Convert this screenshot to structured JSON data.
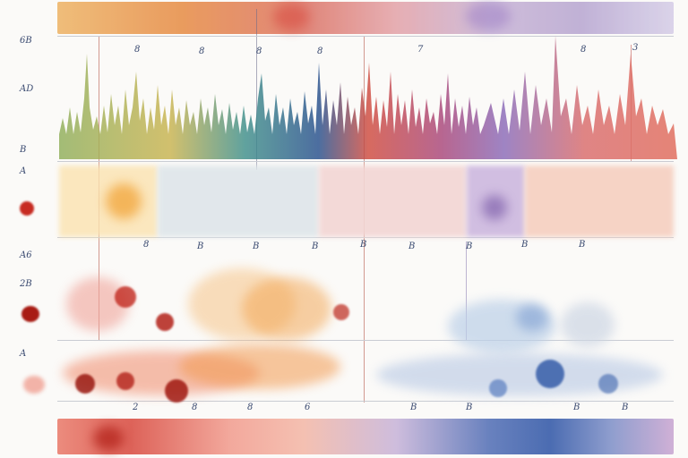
{
  "colors": {
    "paper": "#fbfaf8",
    "orange": "#f08a3a",
    "red": "#d8483d",
    "purple": "#8a6ab8",
    "blue": "#2c53a5",
    "green": "#8fae5a"
  },
  "top_panel_labels": [
    "8",
    "8",
    "8",
    "8",
    "7",
    "8",
    "3"
  ],
  "y_labels": {
    "row1_top": "6B",
    "row1_mid": "AD",
    "row1_low": "B",
    "row2": "A",
    "row3_top": "A6",
    "row3_mid": "2B",
    "row4": "A"
  },
  "mid_panel_labels": [
    "8",
    "B",
    "B",
    "B",
    "B",
    "B",
    "B",
    "B",
    "B"
  ],
  "bottom_axis_labels": [
    "2",
    "8",
    "8",
    "6",
    "B",
    "B",
    "B",
    "B"
  ]
}
